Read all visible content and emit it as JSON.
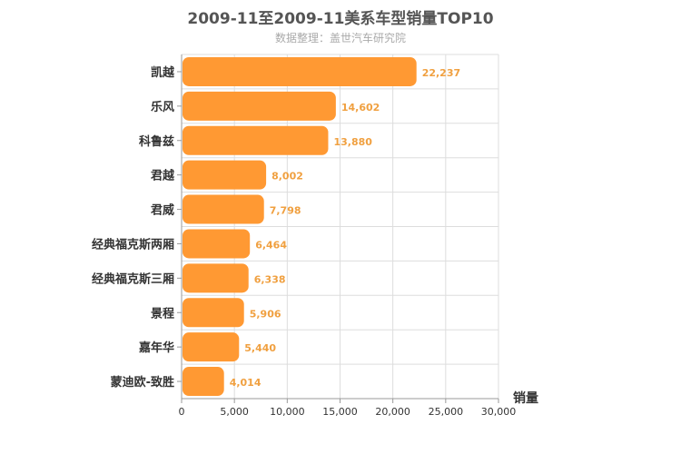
{
  "header": {
    "title": "2009-11至2009-11美系车型销量TOP10",
    "subtitle": "数据整理：盖世汽车研究院"
  },
  "colors": {
    "bar": "#ff9933",
    "value_label": "#f0a040",
    "grid": "#dddddd"
  },
  "chart_data": {
    "type": "bar",
    "orientation": "horizontal",
    "title": "2009-11至2009-11美系车型销量TOP10",
    "subtitle": "数据整理：盖世汽车研究院",
    "xlabel": "销量",
    "ylabel": "",
    "categories": [
      "凯越",
      "乐风",
      "科鲁兹",
      "君越",
      "君威",
      "经典福克斯两厢",
      "经典福克斯三厢",
      "景程",
      "嘉年华",
      "蒙迪欧-致胜"
    ],
    "values": [
      22237,
      14602,
      13880,
      8002,
      7798,
      6464,
      6338,
      5906,
      5440,
      4014
    ],
    "value_labels": [
      "22,237",
      "14,602",
      "13,880",
      "8,002",
      "7,798",
      "6,464",
      "6,338",
      "5,906",
      "5,440",
      "4,014"
    ],
    "xlim": [
      0,
      30000
    ],
    "ticks": [
      0,
      5000,
      10000,
      15000,
      20000,
      25000,
      30000
    ],
    "tick_labels": [
      "0",
      "5,000",
      "10,000",
      "15,000",
      "20,000",
      "25,000",
      "30,000"
    ],
    "grid": true,
    "legend": "none"
  }
}
